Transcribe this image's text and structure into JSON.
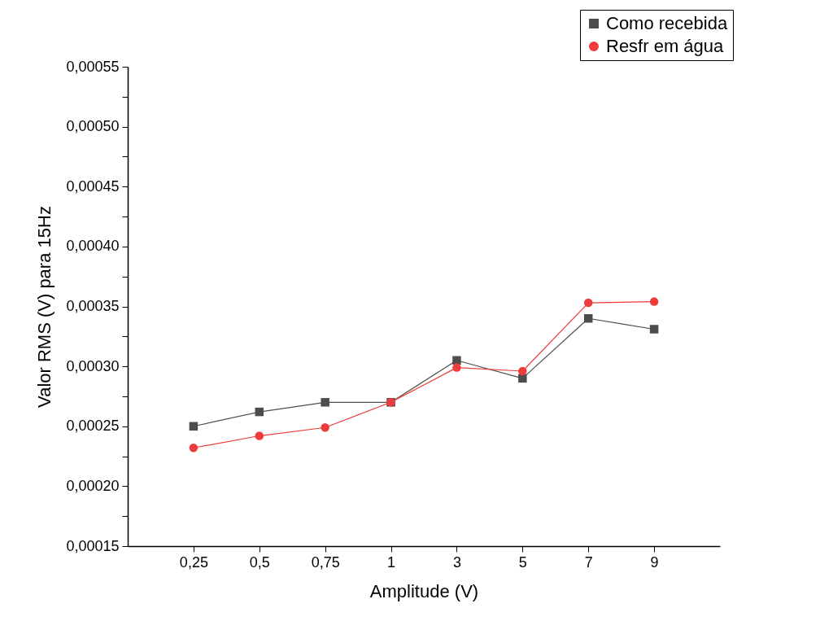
{
  "chart_data": {
    "type": "line",
    "xlabel": "Amplitude (V)",
    "ylabel": "Valor RMS (V) para 15Hz",
    "categories": [
      "0,25",
      "0,5",
      "0,75",
      "1",
      "3",
      "5",
      "7",
      "9"
    ],
    "series": [
      {
        "name": "Como recebida",
        "color": "#4d4d4d",
        "marker": "square",
        "values": [
          0.00025,
          0.000262,
          0.00027,
          0.00027,
          0.000305,
          0.00029,
          0.00034,
          0.000331
        ]
      },
      {
        "name": "Resfr em água",
        "color": "#ee3b3b",
        "marker": "circle",
        "values": [
          0.000232,
          0.000242,
          0.000249,
          0.00027,
          0.000299,
          0.000296,
          0.000353,
          0.000354
        ]
      }
    ],
    "ylim": [
      0.00015,
      0.00055
    ],
    "yticks": [
      {
        "value": 0.00015,
        "label": "0,00015"
      },
      {
        "value": 0.000175,
        "label": null
      },
      {
        "value": 0.0002,
        "label": "0,00020"
      },
      {
        "value": 0.000225,
        "label": null
      },
      {
        "value": 0.00025,
        "label": "0,00025"
      },
      {
        "value": 0.000275,
        "label": null
      },
      {
        "value": 0.0003,
        "label": "0,00030"
      },
      {
        "value": 0.000325,
        "label": null
      },
      {
        "value": 0.00035,
        "label": "0,00035"
      },
      {
        "value": 0.000375,
        "label": null
      },
      {
        "value": 0.0004,
        "label": "0,00040"
      },
      {
        "value": 0.000425,
        "label": null
      },
      {
        "value": 0.00045,
        "label": "0,00045"
      },
      {
        "value": 0.000475,
        "label": null
      },
      {
        "value": 0.0005,
        "label": "0,00050"
      },
      {
        "value": 0.000525,
        "label": null
      },
      {
        "value": 0.00055,
        "label": "0,00055"
      }
    ],
    "grid": false,
    "legend": "top right"
  }
}
